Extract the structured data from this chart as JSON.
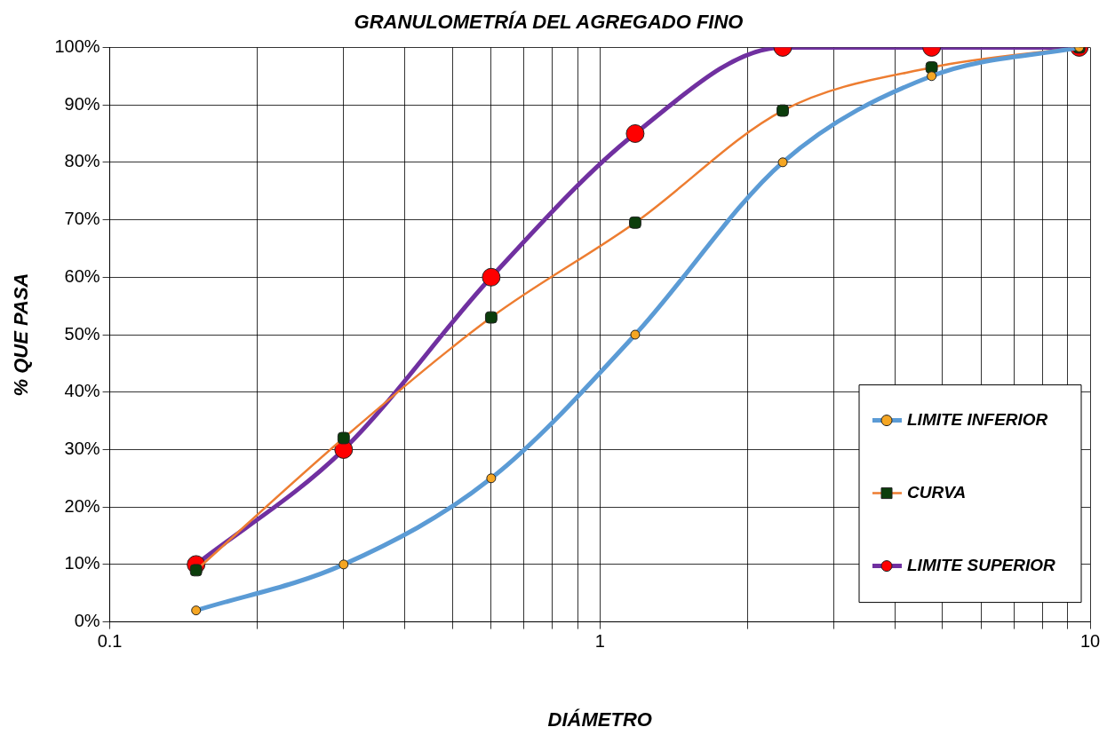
{
  "chart_data": {
    "type": "line",
    "title": "GRANULOMETRÍA DEL AGREGADO FINO",
    "xlabel": "DIÁMETRO",
    "ylabel": "% QUE PASA",
    "log": "x",
    "x": [
      0.15,
      0.3,
      0.6,
      1.18,
      2.36,
      4.75,
      9.5
    ],
    "series": [
      {
        "name": "LIMITE INFERIOR",
        "color": "#5b9bd5",
        "marker": "circle",
        "colors": [
          "#f5a623",
          "#f5a623",
          "#f5a623",
          "#f5a623",
          "#f5a623",
          "#f5a623",
          "#f5a623"
        ],
        "values": [
          2,
          10,
          25,
          50,
          80,
          95,
          100
        ]
      },
      {
        "name": "CURVA",
        "color": "#ed7d31",
        "marker": "square",
        "colors": [
          "#0b3d0b",
          "#0b3d0b",
          "#0b3d0b",
          "#0b3d0b",
          "#0b3d0b",
          "#0b3d0b",
          "#0b3d0b"
        ],
        "values": [
          9,
          32,
          53,
          69.5,
          89,
          96.5,
          100
        ]
      },
      {
        "name": "LIMITE SUPERIOR",
        "color": "#7030a0",
        "marker": "circle",
        "colors": [
          "#ff0000",
          "#ff0000",
          "#ff0000",
          "#ff0000",
          "#ff0000",
          "#ff0000",
          "#ff0000"
        ],
        "values": [
          10,
          30,
          60,
          85,
          100,
          100,
          100
        ]
      }
    ],
    "xlim": [
      0.1,
      10
    ],
    "xticks": [
      0.1,
      {
        "value": 0.2,
        "label": null
      },
      {
        "value": 0.3,
        "label": null
      },
      {
        "value": 0.4,
        "label": null
      },
      {
        "value": 0.5,
        "label": null
      },
      {
        "value": 0.6,
        "label": null
      },
      {
        "value": 0.7,
        "label": null
      },
      {
        "value": 0.8,
        "label": null
      },
      {
        "value": 0.9,
        "label": null
      },
      1,
      {
        "value": 2,
        "label": null
      },
      {
        "value": 3,
        "label": null
      },
      {
        "value": 4,
        "label": null
      },
      {
        "value": 5,
        "label": null
      },
      {
        "value": 6,
        "label": null
      },
      {
        "value": 7,
        "label": null
      },
      {
        "value": 8,
        "label": null
      },
      {
        "value": 9,
        "label": null
      },
      10
    ],
    "ylim": [
      0,
      100
    ],
    "yticks": [
      {
        "value": 0,
        "label": "0%"
      },
      {
        "value": 10,
        "label": "10%"
      },
      {
        "value": 20,
        "label": "20%"
      },
      {
        "value": 30,
        "label": "30%"
      },
      {
        "value": 40,
        "label": "40%"
      },
      {
        "value": 50,
        "label": "50%"
      },
      {
        "value": 60,
        "label": "60%"
      },
      {
        "value": 70,
        "label": "70%"
      },
      {
        "value": 80,
        "label": "80%"
      },
      {
        "value": 90,
        "label": "90%"
      },
      {
        "value": 100,
        "label": "100%"
      }
    ],
    "grid": true,
    "legend": "bottom right"
  }
}
